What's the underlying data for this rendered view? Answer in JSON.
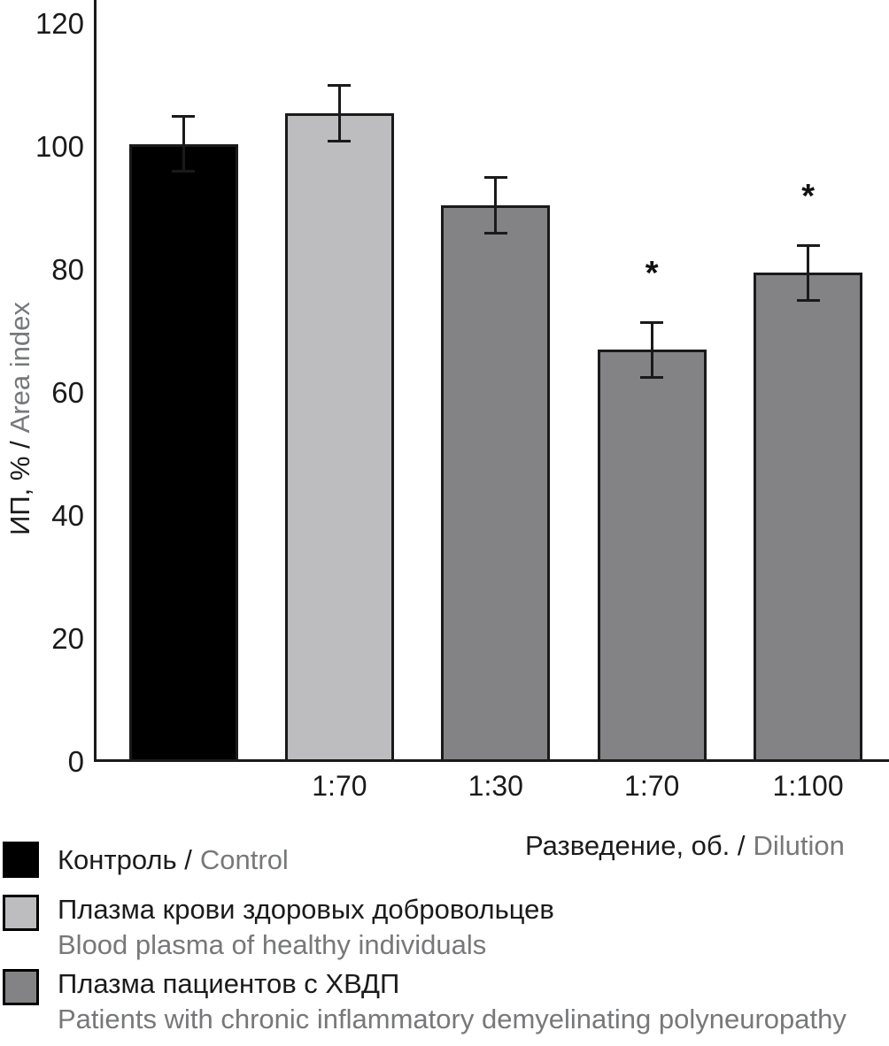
{
  "chart_data": {
    "type": "bar",
    "ylabel": {
      "primary": "ИП, % /",
      "secondary": "Area index"
    },
    "xlabel": {
      "primary": "Разведение, об. /",
      "secondary": "Dilution"
    },
    "ylim": [
      0,
      120
    ],
    "yticks": [
      0,
      20,
      40,
      60,
      80,
      100,
      120
    ],
    "grid": false,
    "significance_marker": "*",
    "bars": [
      {
        "series": "Контроль / Control",
        "dilution": "",
        "value": 100.5,
        "error": 4.5,
        "significant": false,
        "color": "#000000"
      },
      {
        "series": "Плазма крови здоровых добровольцев",
        "dilution": "1:70",
        "value": 105.5,
        "error": 4.5,
        "significant": false,
        "color": "#bdbdbf"
      },
      {
        "series": "Плазма пациентов с ХВДП",
        "dilution": "1:30",
        "value": 90.5,
        "error": 4.5,
        "significant": false,
        "color": "#838385"
      },
      {
        "series": "Плазма пациентов с ХВДП",
        "dilution": "1:70",
        "value": 67,
        "error": 4.5,
        "significant": true,
        "color": "#838385"
      },
      {
        "series": "Плазма пациентов с ХВДП",
        "dilution": "1:100",
        "value": 79.5,
        "error": 4.5,
        "significant": true,
        "color": "#838385"
      }
    ]
  },
  "legend": {
    "items": [
      {
        "swatch_color": "#000000",
        "label_ru": "Контроль /",
        "label_en": "Control"
      },
      {
        "swatch_color": "#bdbdbf",
        "label_ru": "Плазма крови здоровых добровольцев",
        "label_en": "Blood plasma of healthy individuals"
      },
      {
        "swatch_color": "#838385",
        "label_ru": "Плазма пациентов с ХВДП",
        "label_en": "Patients with chronic inflammatory demyelinating polyneuropathy"
      }
    ]
  },
  "colors": {
    "black_text": "#1b1b1b",
    "gray_text": "#77787a",
    "axis": "#1a1a1a",
    "background": "#ffffff",
    "bar_light_gray": "#bdbdbf",
    "bar_mid_gray": "#838385",
    "bar_black": "#000000"
  }
}
